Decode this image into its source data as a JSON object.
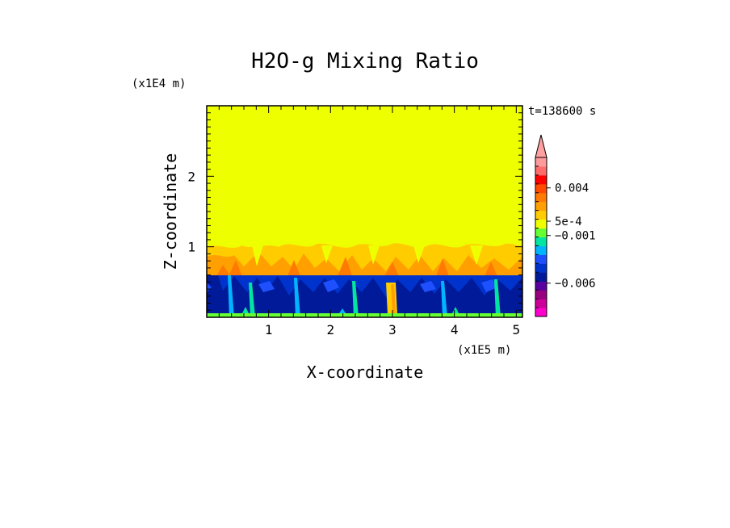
{
  "chart_data": {
    "type": "heatmap",
    "title": "H2O-g Mixing Ratio",
    "xlabel": "X-coordinate",
    "ylabel": "Z-coordinate",
    "x_unit_label": "(x1E5 m)",
    "y_unit_label": "(x1E4 m)",
    "time_label": "t=138600 s",
    "xlim": [
      0,
      5.1
    ],
    "ylim": [
      0,
      3
    ],
    "x_ticks": [
      "1",
      "2",
      "3",
      "4",
      "5"
    ],
    "y_ticks": [
      "1",
      "2"
    ],
    "colorbar": {
      "levels_colors": [
        "#ff00cc",
        "#cc0099",
        "#99007f",
        "#5a00a0",
        "#001a99",
        "#0033cc",
        "#1e50ff",
        "#00b4ff",
        "#00e6a0",
        "#66ff33",
        "#eeff00",
        "#ffcc00",
        "#ffa000",
        "#ff7a00",
        "#ff4a00",
        "#ff0000",
        "#ff6b6b",
        "#ff9a9a"
      ],
      "tick_labels": [
        {
          "label": "0.004",
          "value": 0.004
        },
        {
          "label": "5e-4",
          "value": 0.0005
        },
        {
          "label": "−0.001",
          "value": -0.001
        },
        {
          "label": "−0.006",
          "value": -0.006
        }
      ]
    },
    "regions": [
      {
        "description_level": "background",
        "z_range": [
          1.0,
          3.0
        ],
        "color": "#eeff00"
      },
      {
        "description_level": "orange plumes",
        "z_range": [
          0.6,
          1.05
        ],
        "color": "#ffa000"
      },
      {
        "description_level": "blue layer",
        "z_range": [
          0.0,
          0.6
        ],
        "color": "#0033cc"
      }
    ]
  }
}
